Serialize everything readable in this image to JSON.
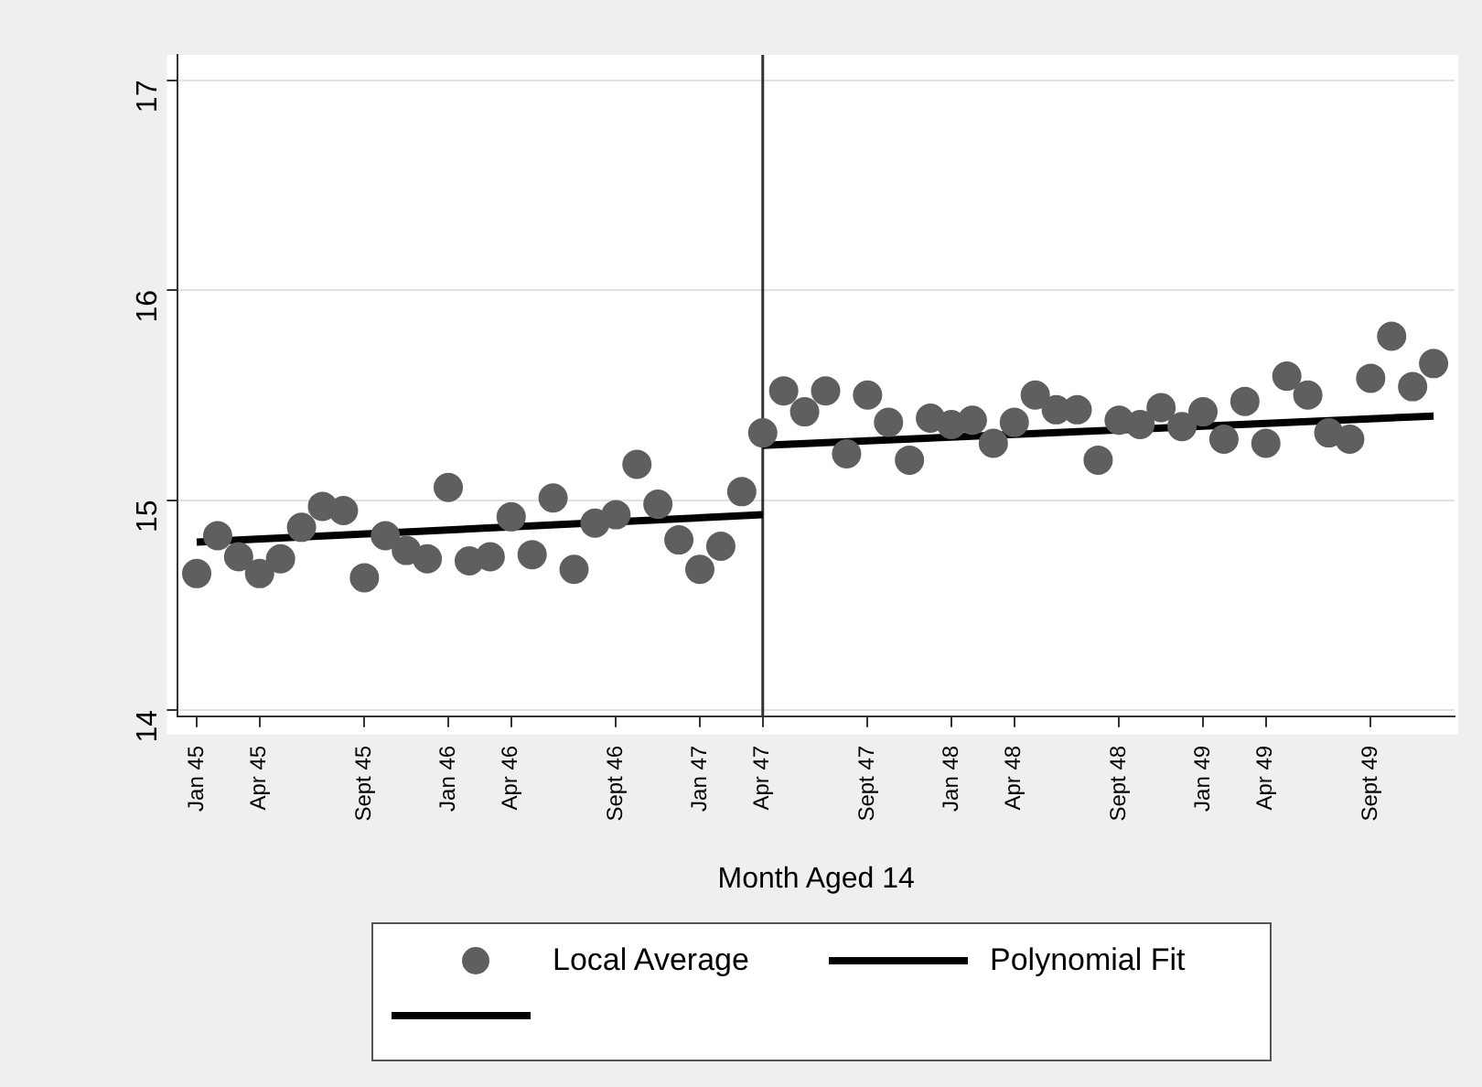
{
  "chart_data": {
    "type": "scatter",
    "xlabel": "Month Aged 14",
    "xlim": [
      "1944-12-04",
      "1950-01"
    ],
    "ylim": [
      13.97,
      17.12
    ],
    "xticks": [
      {
        "value": "1945-01",
        "label": "Jan 45"
      },
      {
        "value": "1945-04",
        "label": "Apr 45"
      },
      {
        "value": "1945-09",
        "label": "Sept 45"
      },
      {
        "value": "1946-01",
        "label": "Jan 46"
      },
      {
        "value": "1946-04",
        "label": "Apr 46"
      },
      {
        "value": "1946-09",
        "label": "Sept 46"
      },
      {
        "value": "1947-01",
        "label": "Jan 47"
      },
      {
        "value": "1947-04",
        "label": "Apr 47"
      },
      {
        "value": "1947-09",
        "label": "Sept 47"
      },
      {
        "value": "1948-01",
        "label": "Jan 48"
      },
      {
        "value": "1948-04",
        "label": "Apr 48"
      },
      {
        "value": "1948-09",
        "label": "Sept 48"
      },
      {
        "value": "1949-01",
        "label": "Jan 49"
      },
      {
        "value": "1949-04",
        "label": "Apr 49"
      },
      {
        "value": "1949-09",
        "label": "Sept 49"
      }
    ],
    "yticks": [
      14,
      15,
      16,
      17
    ],
    "grid": "y",
    "legend": "bottom",
    "x": [
      "1945-01",
      "1945-02",
      "1945-03",
      "1945-04",
      "1945-05",
      "1945-06",
      "1945-07",
      "1945-08",
      "1945-09",
      "1945-10",
      "1945-11",
      "1945-12",
      "1946-01",
      "1946-02",
      "1946-03",
      "1946-04",
      "1946-05",
      "1946-06",
      "1946-07",
      "1946-08",
      "1946-09",
      "1946-10",
      "1946-11",
      "1946-12",
      "1947-01",
      "1947-02",
      "1947-03",
      "1947-04",
      "1947-05",
      "1947-06",
      "1947-07",
      "1947-08",
      "1947-09",
      "1947-10",
      "1947-11",
      "1947-12",
      "1948-01",
      "1948-02",
      "1948-03",
      "1948-04",
      "1948-05",
      "1948-06",
      "1948-07",
      "1948-08",
      "1948-09",
      "1948-10",
      "1948-11",
      "1948-12",
      "1949-01",
      "1949-02",
      "1949-03",
      "1949-04",
      "1949-05",
      "1949-06",
      "1949-07",
      "1949-08",
      "1949-09",
      "1949-10",
      "1949-11",
      "1949-12"
    ],
    "series": [
      {
        "name": "Local Average",
        "marker": "circle",
        "color": "#5f5f5f",
        "values": [
          14.65,
          14.83,
          14.73,
          14.65,
          14.72,
          14.87,
          14.97,
          14.95,
          14.63,
          14.83,
          14.76,
          14.72,
          15.06,
          14.71,
          14.73,
          14.92,
          14.74,
          15.01,
          14.67,
          14.89,
          14.93,
          15.17,
          14.98,
          14.81,
          14.67,
          14.78,
          15.04,
          15.32,
          15.52,
          15.42,
          15.52,
          15.22,
          15.5,
          15.37,
          15.19,
          15.39,
          15.36,
          15.38,
          15.27,
          15.37,
          15.5,
          15.43,
          15.43,
          15.19,
          15.38,
          15.36,
          15.44,
          15.35,
          15.42,
          15.29,
          15.47,
          15.27,
          15.59,
          15.5,
          15.32,
          15.29,
          15.58,
          15.78,
          15.54,
          15.65
        ]
      },
      {
        "name": "Polynomial Fit",
        "type": "line",
        "marker": "none",
        "color": "#000000",
        "x": [
          "1945-01",
          "1947-04"
        ],
        "values": [
          14.8,
          14.93
        ]
      },
      {
        "type": "line",
        "marker": "none",
        "color": "#000000",
        "x": [
          "1947-04",
          "1949-12"
        ],
        "values": [
          15.26,
          15.4
        ]
      }
    ],
    "ref_lines": [
      {
        "axis": "x",
        "value": "1947-04",
        "color": "#333333"
      }
    ]
  }
}
